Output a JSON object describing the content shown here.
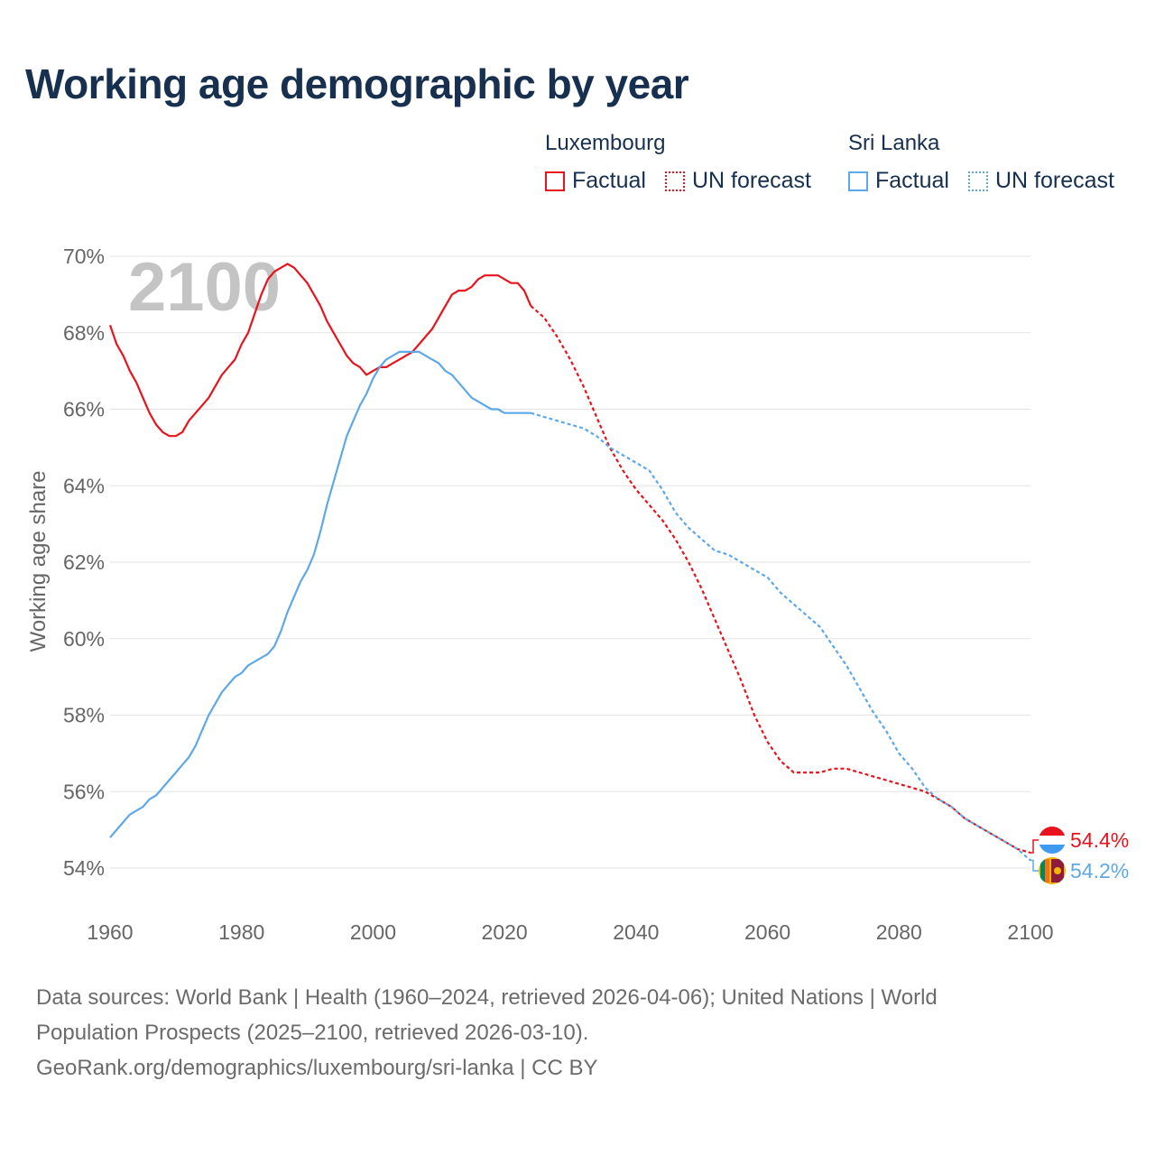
{
  "title": "Working age demographic by year",
  "legend": {
    "groups": [
      {
        "name": "Luxembourg",
        "factual_label": "Factual",
        "forecast_label": "UN forecast",
        "color": "#e8131c"
      },
      {
        "name": "Sri Lanka",
        "factual_label": "Factual",
        "forecast_label": "UN forecast",
        "color": "#5ea8e8"
      }
    ]
  },
  "chart_data": {
    "type": "line",
    "ylabel": "Working age share",
    "year_watermark": "2100",
    "xlim": [
      1960,
      2100
    ],
    "ylim": [
      53,
      70
    ],
    "x_ticks": [
      "1960",
      "1980",
      "2000",
      "2020",
      "2040",
      "2060",
      "2080",
      "2100"
    ],
    "y_ticks": [
      "54%",
      "56%",
      "58%",
      "60%",
      "62%",
      "64%",
      "66%",
      "68%",
      "70%"
    ],
    "series": [
      {
        "name": "Luxembourg",
        "color": "#e8131c",
        "end_label": "54.4%",
        "factual": {
          "x": [
            1960,
            1961,
            1962,
            1963,
            1964,
            1965,
            1966,
            1967,
            1968,
            1969,
            1970,
            1971,
            1972,
            1973,
            1974,
            1975,
            1976,
            1977,
            1978,
            1979,
            1980,
            1981,
            1982,
            1983,
            1984,
            1985,
            1986,
            1987,
            1988,
            1989,
            1990,
            1991,
            1992,
            1993,
            1994,
            1995,
            1996,
            1997,
            1998,
            1999,
            2000,
            2001,
            2002,
            2003,
            2004,
            2005,
            2006,
            2007,
            2008,
            2009,
            2010,
            2011,
            2012,
            2013,
            2014,
            2015,
            2016,
            2017,
            2018,
            2019,
            2020,
            2021,
            2022,
            2023,
            2024
          ],
          "y": [
            68.2,
            67.7,
            67.4,
            67.0,
            66.7,
            66.3,
            65.9,
            65.6,
            65.4,
            65.3,
            65.3,
            65.4,
            65.7,
            65.9,
            66.1,
            66.3,
            66.6,
            66.9,
            67.1,
            67.3,
            67.7,
            68.0,
            68.5,
            69.0,
            69.4,
            69.6,
            69.7,
            69.8,
            69.7,
            69.5,
            69.3,
            69.0,
            68.7,
            68.3,
            68.0,
            67.7,
            67.4,
            67.2,
            67.1,
            66.9,
            67.0,
            67.1,
            67.1,
            67.2,
            67.3,
            67.4,
            67.5,
            67.7,
            67.9,
            68.1,
            68.4,
            68.7,
            69.0,
            69.1,
            69.1,
            69.2,
            69.4,
            69.5,
            69.5,
            69.5,
            69.4,
            69.3,
            69.3,
            69.1,
            68.7
          ]
        },
        "forecast": {
          "x": [
            2024,
            2026,
            2028,
            2030,
            2032,
            2034,
            2036,
            2038,
            2040,
            2042,
            2044,
            2046,
            2048,
            2050,
            2052,
            2054,
            2056,
            2058,
            2060,
            2062,
            2064,
            2066,
            2068,
            2070,
            2072,
            2074,
            2076,
            2078,
            2080,
            2082,
            2084,
            2086,
            2088,
            2090,
            2092,
            2094,
            2096,
            2098,
            2100
          ],
          "y": [
            68.7,
            68.4,
            67.9,
            67.3,
            66.6,
            65.8,
            65.0,
            64.4,
            63.9,
            63.5,
            63.1,
            62.6,
            62.0,
            61.3,
            60.5,
            59.7,
            58.9,
            58.0,
            57.3,
            56.8,
            56.5,
            56.5,
            56.5,
            56.6,
            56.6,
            56.5,
            56.4,
            56.3,
            56.2,
            56.1,
            56.0,
            55.8,
            55.6,
            55.3,
            55.1,
            54.9,
            54.7,
            54.5,
            54.4
          ]
        }
      },
      {
        "name": "Sri Lanka",
        "color": "#5ea8e8",
        "end_label": "54.2%",
        "factual": {
          "x": [
            1960,
            1961,
            1962,
            1963,
            1964,
            1965,
            1966,
            1967,
            1968,
            1969,
            1970,
            1971,
            1972,
            1973,
            1974,
            1975,
            1976,
            1977,
            1978,
            1979,
            1980,
            1981,
            1982,
            1983,
            1984,
            1985,
            1986,
            1987,
            1988,
            1989,
            1990,
            1991,
            1992,
            1993,
            1994,
            1995,
            1996,
            1997,
            1998,
            1999,
            2000,
            2001,
            2002,
            2003,
            2004,
            2005,
            2006,
            2007,
            2008,
            2009,
            2010,
            2011,
            2012,
            2013,
            2014,
            2015,
            2016,
            2017,
            2018,
            2019,
            2020,
            2021,
            2022,
            2023,
            2024
          ],
          "y": [
            54.8,
            55.0,
            55.2,
            55.4,
            55.5,
            55.6,
            55.8,
            55.9,
            56.1,
            56.3,
            56.5,
            56.7,
            56.9,
            57.2,
            57.6,
            58.0,
            58.3,
            58.6,
            58.8,
            59.0,
            59.1,
            59.3,
            59.4,
            59.5,
            59.6,
            59.8,
            60.2,
            60.7,
            61.1,
            61.5,
            61.8,
            62.2,
            62.8,
            63.5,
            64.1,
            64.7,
            65.3,
            65.7,
            66.1,
            66.4,
            66.8,
            67.1,
            67.3,
            67.4,
            67.5,
            67.5,
            67.5,
            67.5,
            67.4,
            67.3,
            67.2,
            67.0,
            66.9,
            66.7,
            66.5,
            66.3,
            66.2,
            66.1,
            66.0,
            66.0,
            65.9,
            65.9,
            65.9,
            65.9,
            65.9
          ]
        },
        "forecast": {
          "x": [
            2024,
            2026,
            2028,
            2030,
            2032,
            2034,
            2036,
            2038,
            2040,
            2042,
            2044,
            2046,
            2048,
            2050,
            2052,
            2054,
            2056,
            2058,
            2060,
            2062,
            2064,
            2066,
            2068,
            2070,
            2072,
            2074,
            2076,
            2078,
            2080,
            2082,
            2084,
            2086,
            2088,
            2090,
            2092,
            2094,
            2096,
            2098,
            2100
          ],
          "y": [
            65.9,
            65.8,
            65.7,
            65.6,
            65.5,
            65.3,
            65.0,
            64.8,
            64.6,
            64.4,
            63.9,
            63.3,
            62.9,
            62.6,
            62.3,
            62.2,
            62.0,
            61.8,
            61.6,
            61.2,
            60.9,
            60.6,
            60.3,
            59.8,
            59.3,
            58.7,
            58.1,
            57.6,
            57.0,
            56.6,
            56.1,
            55.8,
            55.6,
            55.3,
            55.1,
            54.9,
            54.7,
            54.5,
            54.2
          ]
        }
      }
    ]
  },
  "footer": {
    "line1": "Data sources: World Bank | Health (1960–2024, retrieved 2026-04-06); United Nations | World",
    "line2": "Population Prospects (2025–2100, retrieved 2026-03-10).",
    "line3": "GeoRank.org/demographics/luxembourg/sri-lanka | CC BY"
  }
}
